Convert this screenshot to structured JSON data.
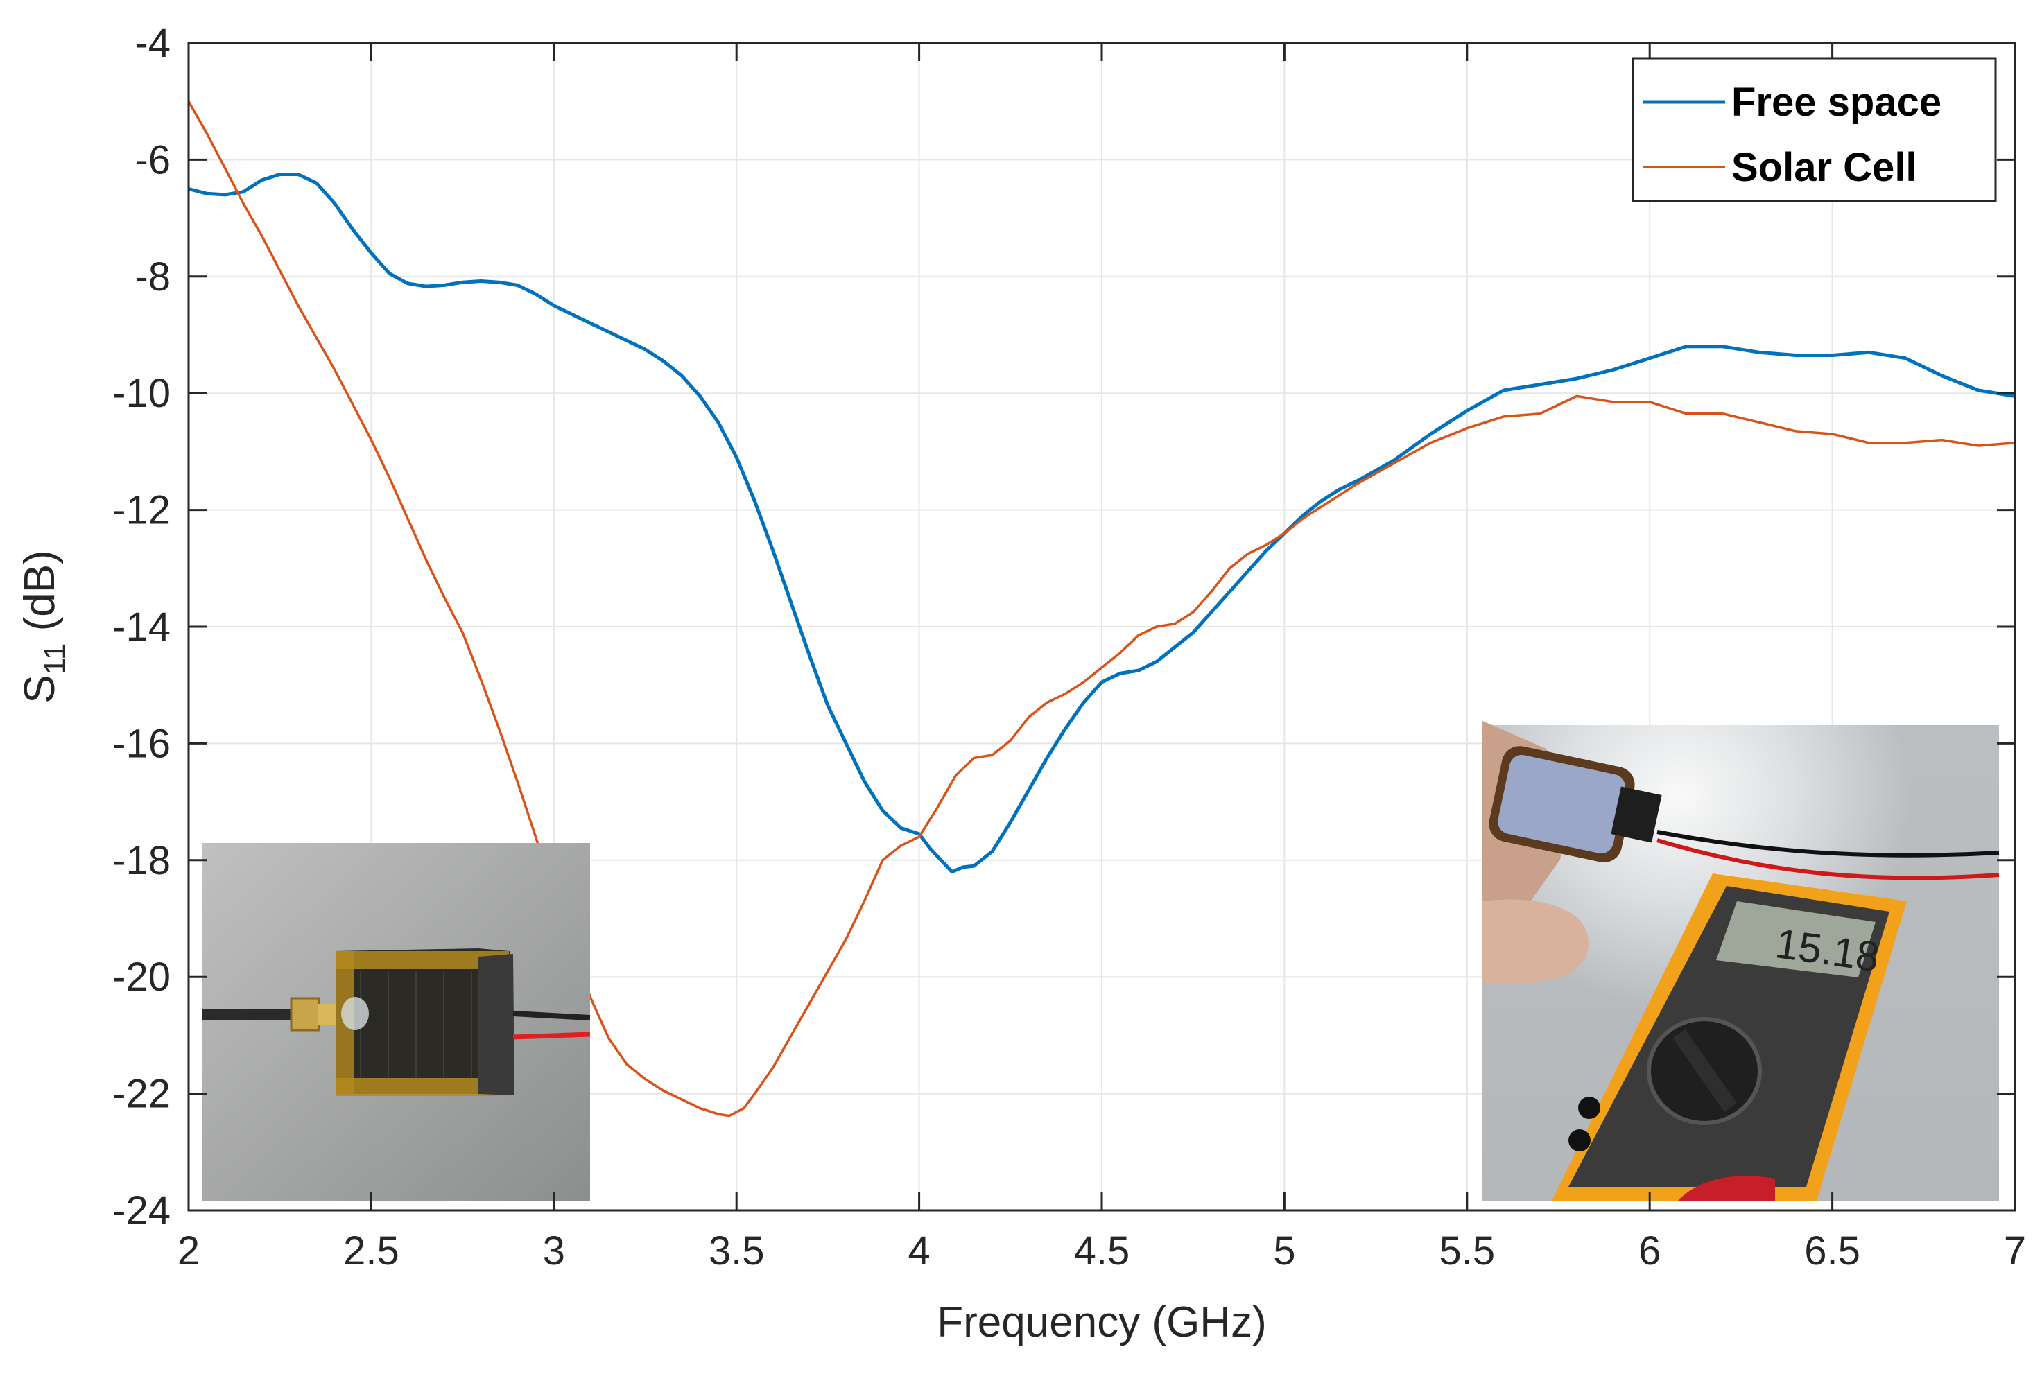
{
  "chart_data": {
    "type": "line",
    "title": "",
    "xlabel": "Frequency (GHz)",
    "ylabel": "S11 (dB)",
    "ylabel_main": "S",
    "ylabel_sub": "11",
    "ylabel_rest": " (dB)",
    "xlim": [
      2,
      7
    ],
    "ylim": [
      -24,
      -4
    ],
    "xticks": [
      2,
      2.5,
      3,
      3.5,
      4,
      4.5,
      5,
      5.5,
      6,
      6.5,
      7
    ],
    "xtick_labels": [
      "2",
      "2.5",
      "3",
      "3.5",
      "4",
      "4.5",
      "5",
      "5.5",
      "6",
      "6.5",
      "7"
    ],
    "yticks": [
      -24,
      -22,
      -20,
      -18,
      -16,
      -14,
      -12,
      -10,
      -8,
      -6,
      -4
    ],
    "ytick_labels": [
      "-24",
      "-22",
      "-20",
      "-18",
      "-16",
      "-14",
      "-12",
      "-10",
      "-8",
      "-6",
      "-4"
    ],
    "grid": true,
    "legend_position": "top-right",
    "series": [
      {
        "name": "Free space",
        "color": "#0072BD",
        "x": [
          2.0,
          2.05,
          2.1,
          2.15,
          2.2,
          2.25,
          2.3,
          2.35,
          2.4,
          2.45,
          2.5,
          2.55,
          2.6,
          2.65,
          2.7,
          2.75,
          2.8,
          2.85,
          2.9,
          2.95,
          3.0,
          3.05,
          3.1,
          3.15,
          3.2,
          3.25,
          3.3,
          3.35,
          3.4,
          3.45,
          3.5,
          3.55,
          3.6,
          3.65,
          3.7,
          3.75,
          3.8,
          3.85,
          3.9,
          3.95,
          4.0,
          4.03,
          4.06,
          4.09,
          4.12,
          4.15,
          4.2,
          4.25,
          4.3,
          4.35,
          4.4,
          4.45,
          4.5,
          4.55,
          4.6,
          4.65,
          4.7,
          4.75,
          4.8,
          4.85,
          4.9,
          4.95,
          5.0,
          5.05,
          5.1,
          5.15,
          5.2,
          5.3,
          5.4,
          5.5,
          5.6,
          5.7,
          5.8,
          5.9,
          6.0,
          6.1,
          6.2,
          6.3,
          6.4,
          6.5,
          6.6,
          6.7,
          6.8,
          6.9,
          7.0
        ],
        "values": [
          -6.5,
          -6.58,
          -6.6,
          -6.55,
          -6.35,
          -6.25,
          -6.25,
          -6.4,
          -6.75,
          -7.2,
          -7.6,
          -7.95,
          -8.12,
          -8.17,
          -8.15,
          -8.1,
          -8.08,
          -8.1,
          -8.15,
          -8.3,
          -8.5,
          -8.65,
          -8.8,
          -8.95,
          -9.1,
          -9.25,
          -9.45,
          -9.7,
          -10.05,
          -10.5,
          -11.1,
          -11.85,
          -12.7,
          -13.6,
          -14.5,
          -15.35,
          -16.0,
          -16.65,
          -17.15,
          -17.45,
          -17.55,
          -17.8,
          -18.0,
          -18.2,
          -18.12,
          -18.1,
          -17.85,
          -17.35,
          -16.8,
          -16.25,
          -15.75,
          -15.3,
          -14.95,
          -14.8,
          -14.75,
          -14.6,
          -14.35,
          -14.1,
          -13.75,
          -13.4,
          -13.05,
          -12.7,
          -12.4,
          -12.1,
          -11.85,
          -11.65,
          -11.5,
          -11.15,
          -10.7,
          -10.3,
          -9.95,
          -9.85,
          -9.75,
          -9.6,
          -9.4,
          -9.2,
          -9.2,
          -9.3,
          -9.35,
          -9.35,
          -9.3,
          -9.4,
          -9.7,
          -9.95,
          -10.05
        ]
      },
      {
        "name": "Solar Cell",
        "color": "#D95319",
        "x": [
          2.0,
          2.05,
          2.1,
          2.15,
          2.2,
          2.25,
          2.3,
          2.35,
          2.4,
          2.45,
          2.5,
          2.55,
          2.6,
          2.65,
          2.7,
          2.75,
          2.8,
          2.85,
          2.9,
          2.95,
          3.0,
          3.05,
          3.1,
          3.15,
          3.2,
          3.25,
          3.3,
          3.35,
          3.4,
          3.45,
          3.48,
          3.52,
          3.55,
          3.6,
          3.65,
          3.7,
          3.75,
          3.8,
          3.85,
          3.9,
          3.95,
          4.0,
          4.05,
          4.1,
          4.15,
          4.2,
          4.25,
          4.3,
          4.35,
          4.4,
          4.45,
          4.5,
          4.55,
          4.6,
          4.65,
          4.7,
          4.75,
          4.8,
          4.85,
          4.9,
          4.95,
          5.0,
          5.05,
          5.1,
          5.15,
          5.2,
          5.3,
          5.4,
          5.5,
          5.6,
          5.7,
          5.75,
          5.8,
          5.9,
          6.0,
          6.1,
          6.2,
          6.3,
          6.4,
          6.5,
          6.6,
          6.7,
          6.8,
          6.9,
          7.0
        ],
        "values": [
          -5.0,
          -5.55,
          -6.15,
          -6.75,
          -7.3,
          -7.9,
          -8.5,
          -9.05,
          -9.6,
          -10.2,
          -10.8,
          -11.45,
          -12.15,
          -12.85,
          -13.5,
          -14.1,
          -14.9,
          -15.75,
          -16.65,
          -17.6,
          -18.6,
          -19.5,
          -20.35,
          -21.05,
          -21.5,
          -21.75,
          -21.95,
          -22.1,
          -22.25,
          -22.35,
          -22.38,
          -22.25,
          -22.0,
          -21.55,
          -21.0,
          -20.45,
          -19.9,
          -19.35,
          -18.7,
          -18.0,
          -17.75,
          -17.6,
          -17.1,
          -16.55,
          -16.25,
          -16.2,
          -15.95,
          -15.55,
          -15.3,
          -15.15,
          -14.95,
          -14.7,
          -14.45,
          -14.15,
          -14.0,
          -13.95,
          -13.75,
          -13.4,
          -13.0,
          -12.75,
          -12.6,
          -12.4,
          -12.15,
          -11.95,
          -11.75,
          -11.55,
          -11.2,
          -10.85,
          -10.6,
          -10.4,
          -10.35,
          -10.2,
          -10.05,
          -10.15,
          -10.15,
          -10.35,
          -10.35,
          -10.5,
          -10.65,
          -10.7,
          -10.85,
          -10.85,
          -10.8,
          -10.9,
          -10.85
        ]
      }
    ],
    "insets": [
      {
        "name": "solar-cell-antenna-photo"
      },
      {
        "name": "multimeter-photo",
        "display_reading": "15.18"
      }
    ]
  }
}
